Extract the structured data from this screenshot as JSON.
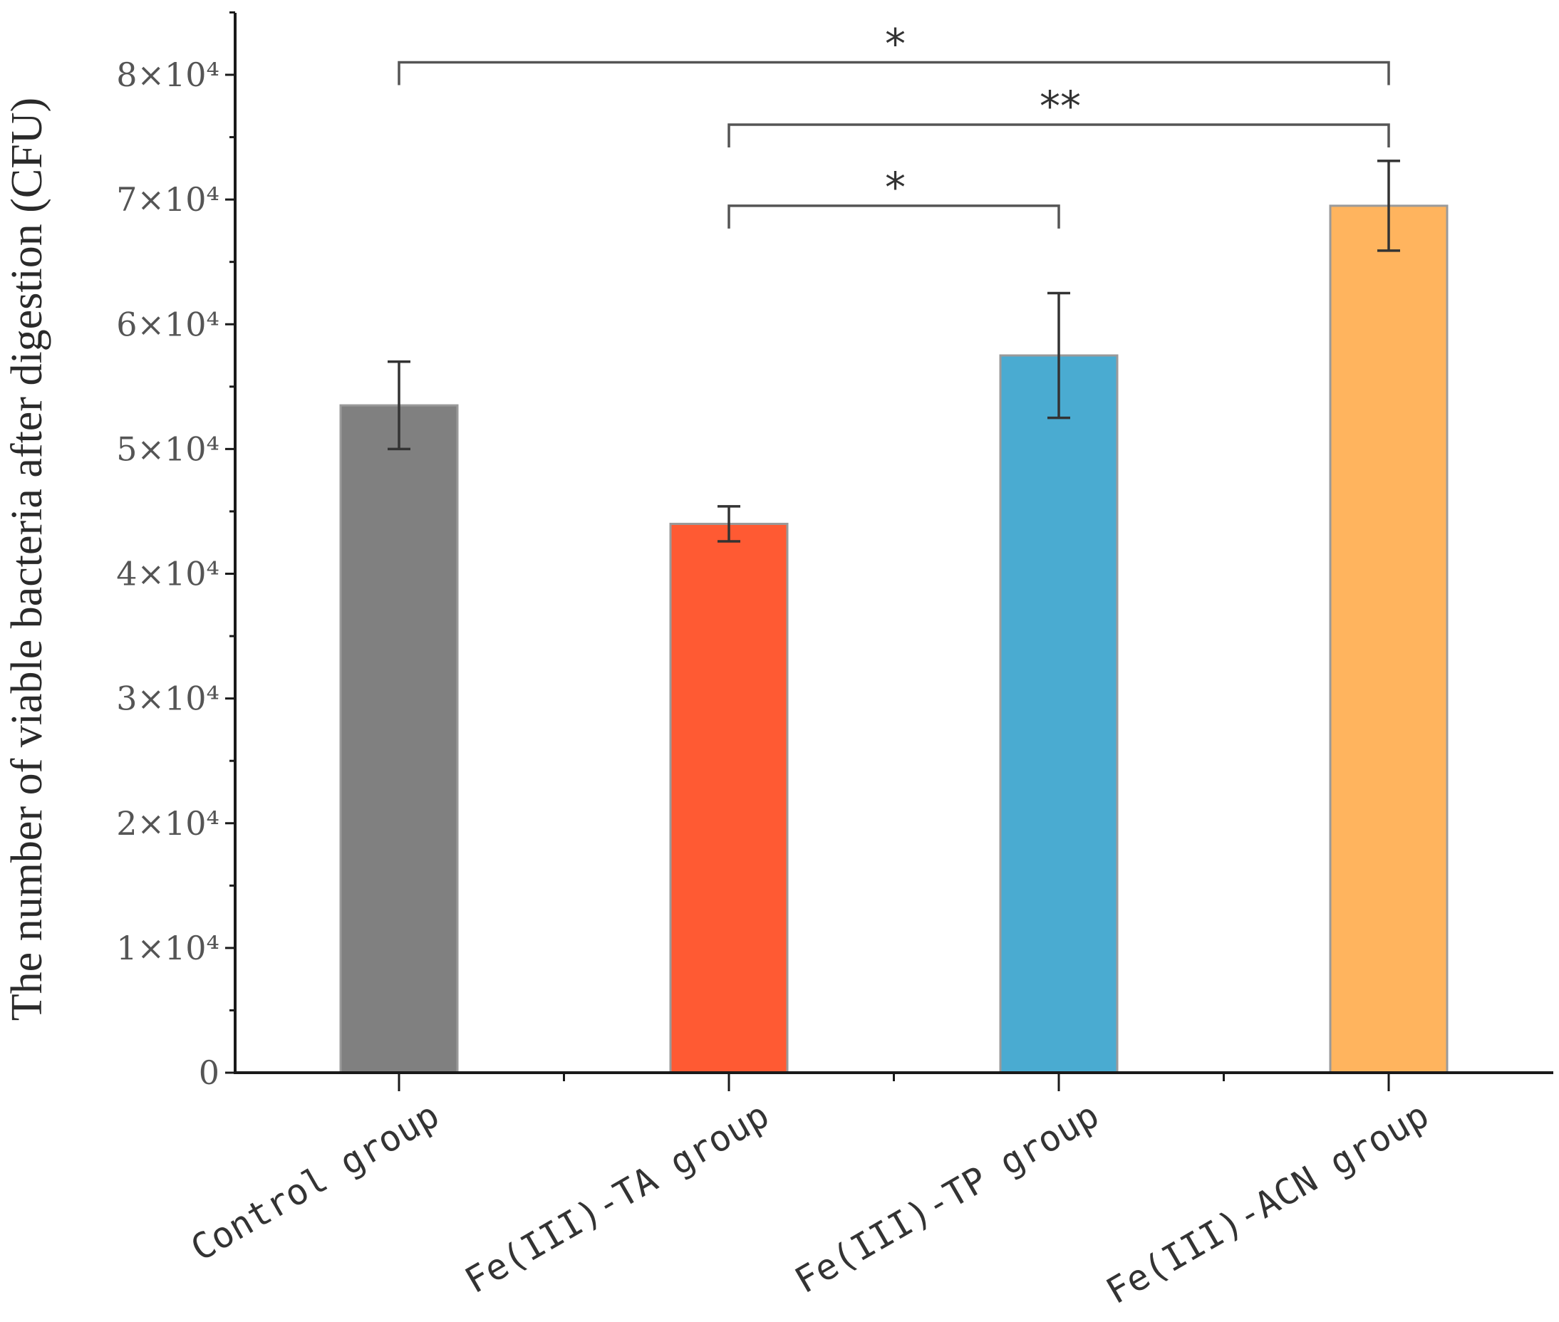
{
  "chart_data": {
    "type": "bar",
    "title": "",
    "xlabel": "",
    "ylabel": "The number of viable bacteria after digestion (CFU)",
    "ylim": [
      0,
      85000
    ],
    "grid": false,
    "y_ticks": [
      {
        "value": 0,
        "label": "0"
      },
      {
        "value": 10000,
        "label": "1×10⁴"
      },
      {
        "value": 20000,
        "label": "2×10⁴"
      },
      {
        "value": 30000,
        "label": "3×10⁴"
      },
      {
        "value": 40000,
        "label": "4×10⁴"
      },
      {
        "value": 50000,
        "label": "5×10⁴"
      },
      {
        "value": 60000,
        "label": "6×10⁴"
      },
      {
        "value": 70000,
        "label": "7×10⁴"
      },
      {
        "value": 80000,
        "label": "8×10⁴"
      }
    ],
    "categories": [
      "Control group",
      "Fe(III)-TA group",
      "Fe(III)-TP group",
      "Fe(III)-ACN group"
    ],
    "values": [
      53500,
      44000,
      57500,
      69500
    ],
    "errors": [
      3500,
      1400,
      5000,
      3600
    ],
    "colors": [
      "#808080",
      "#ff5a33",
      "#4aabd1",
      "#ffb45e"
    ],
    "significance": [
      {
        "from": 0,
        "to": 3,
        "label": "*",
        "level": 81000
      },
      {
        "from": 1,
        "to": 3,
        "label": "**",
        "level": 76000
      },
      {
        "from": 1,
        "to": 2,
        "label": "*",
        "level": 69500
      }
    ]
  }
}
